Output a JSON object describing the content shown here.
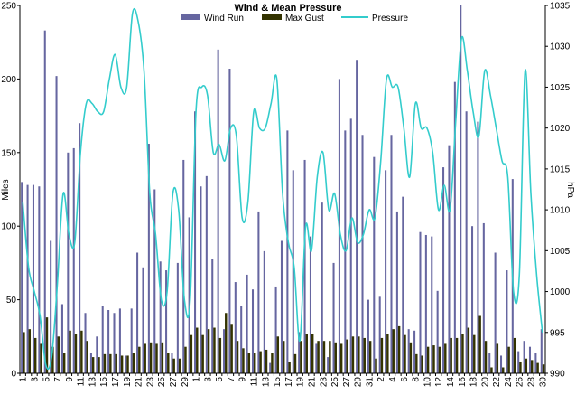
{
  "chart_data": {
    "type": "bar",
    "title": "Wind & Mean Pressure",
    "ylabel": "Miles",
    "y2label": "hPa",
    "ylim": [
      0,
      250
    ],
    "y2lim": [
      990,
      1035
    ],
    "yticks": [
      "0",
      "50",
      "100",
      "150",
      "200",
      "250"
    ],
    "y2ticks": [
      "990",
      "995",
      "1000",
      "1005",
      "1010",
      "1015",
      "1020",
      "1025",
      "1030",
      "1035"
    ],
    "legend_position": "top",
    "grid": false,
    "colors": {
      "wind_run": "#6666a0",
      "max_gust": "#333300",
      "pressure": "#33cccc"
    },
    "categories": [
      "1",
      "2",
      "3",
      "4",
      "5",
      "6",
      "7",
      "8",
      "9",
      "10",
      "11",
      "12",
      "13",
      "14",
      "15",
      "16",
      "17",
      "18",
      "19",
      "20",
      "21",
      "22",
      "23",
      "24",
      "25",
      "26",
      "27",
      "28",
      "29",
      "30",
      "1",
      "2",
      "3",
      "4",
      "5",
      "6",
      "7",
      "8",
      "9",
      "10",
      "11",
      "12",
      "13",
      "14",
      "15",
      "16",
      "17",
      "18",
      "19",
      "20",
      "21",
      "22",
      "23",
      "24",
      "25",
      "26",
      "27",
      "28",
      "29",
      "30",
      "31",
      "1",
      "2",
      "3",
      "4",
      "5",
      "6",
      "7",
      "8",
      "9",
      "10",
      "11",
      "12",
      "13",
      "14",
      "15",
      "16",
      "17",
      "18",
      "19",
      "20",
      "21",
      "22",
      "23",
      "24",
      "25",
      "26",
      "27",
      "28",
      "29",
      "30"
    ],
    "series": [
      {
        "name": "Wind Run",
        "kind": "bar",
        "axis": "left",
        "values": [
          130,
          128,
          128,
          127,
          233,
          90,
          202,
          47,
          150,
          153,
          170,
          41,
          14,
          25,
          46,
          43,
          41,
          44,
          12,
          44,
          82,
          72,
          156,
          125,
          76,
          70,
          14,
          75,
          145,
          106,
          178,
          127,
          134,
          78,
          220,
          30,
          207,
          62,
          46,
          67,
          57,
          110,
          83,
          7,
          59,
          90,
          165,
          138,
          28,
          145,
          93,
          20,
          116,
          11,
          75,
          200,
          165,
          173,
          213,
          162,
          50,
          147,
          52,
          138,
          162,
          110,
          120,
          30,
          29,
          96,
          94,
          93,
          56,
          140,
          155,
          198,
          250,
          178,
          100,
          171,
          102,
          14,
          82,
          12,
          70,
          132,
          15,
          22,
          18,
          14,
          30
        ]
      },
      {
        "name": "Max Gust",
        "kind": "bar",
        "axis": "left",
        "values": [
          28,
          30,
          24,
          20,
          38,
          18,
          25,
          14,
          29,
          27,
          29,
          22,
          11,
          11,
          13,
          13,
          13,
          12,
          12,
          14,
          18,
          20,
          21,
          20,
          21,
          14,
          10,
          10,
          18,
          26,
          31,
          26,
          30,
          31,
          24,
          41,
          33,
          22,
          17,
          14,
          14,
          15,
          16,
          14,
          25,
          22,
          8,
          13,
          22,
          27,
          27,
          22,
          22,
          22,
          21,
          20,
          23,
          25,
          25,
          24,
          22,
          10,
          24,
          27,
          30,
          32,
          26,
          21,
          13,
          12,
          18,
          19,
          18,
          20,
          24,
          24,
          27,
          31,
          26,
          39,
          22,
          4,
          20,
          4,
          18,
          24,
          8,
          10,
          9,
          7,
          6
        ]
      },
      {
        "name": "Pressure",
        "kind": "line",
        "axis": "right",
        "values": [
          1011,
          1003,
          1000,
          997,
          991,
          992,
          1001,
          1012,
          1007,
          1006,
          1017,
          1023,
          1023,
          1022,
          1022,
          1026,
          1029,
          1025,
          1025,
          1034,
          1033,
          1027,
          1012,
          1007,
          999,
          1000,
          1012,
          1010,
          999,
          999,
          1022,
          1025,
          1024,
          1017,
          1018,
          1016,
          1020,
          1019,
          1009,
          1011,
          1022,
          1020,
          1020,
          1023,
          1026,
          1012,
          1006,
          1003,
          994,
          1008,
          1005,
          1014,
          1017,
          1010,
          1012,
          1007,
          1005,
          1009,
          1006,
          1007,
          1010,
          1009,
          1016,
          1026,
          1025,
          1025,
          1020,
          1014,
          1023,
          1020,
          1020,
          1017,
          1010,
          1013,
          1010,
          1021,
          1031,
          1027,
          1022,
          1019,
          1027,
          1024,
          1020,
          1016,
          1014,
          1000,
          1002,
          1027,
          1012,
          1002,
          995
        ]
      }
    ]
  }
}
